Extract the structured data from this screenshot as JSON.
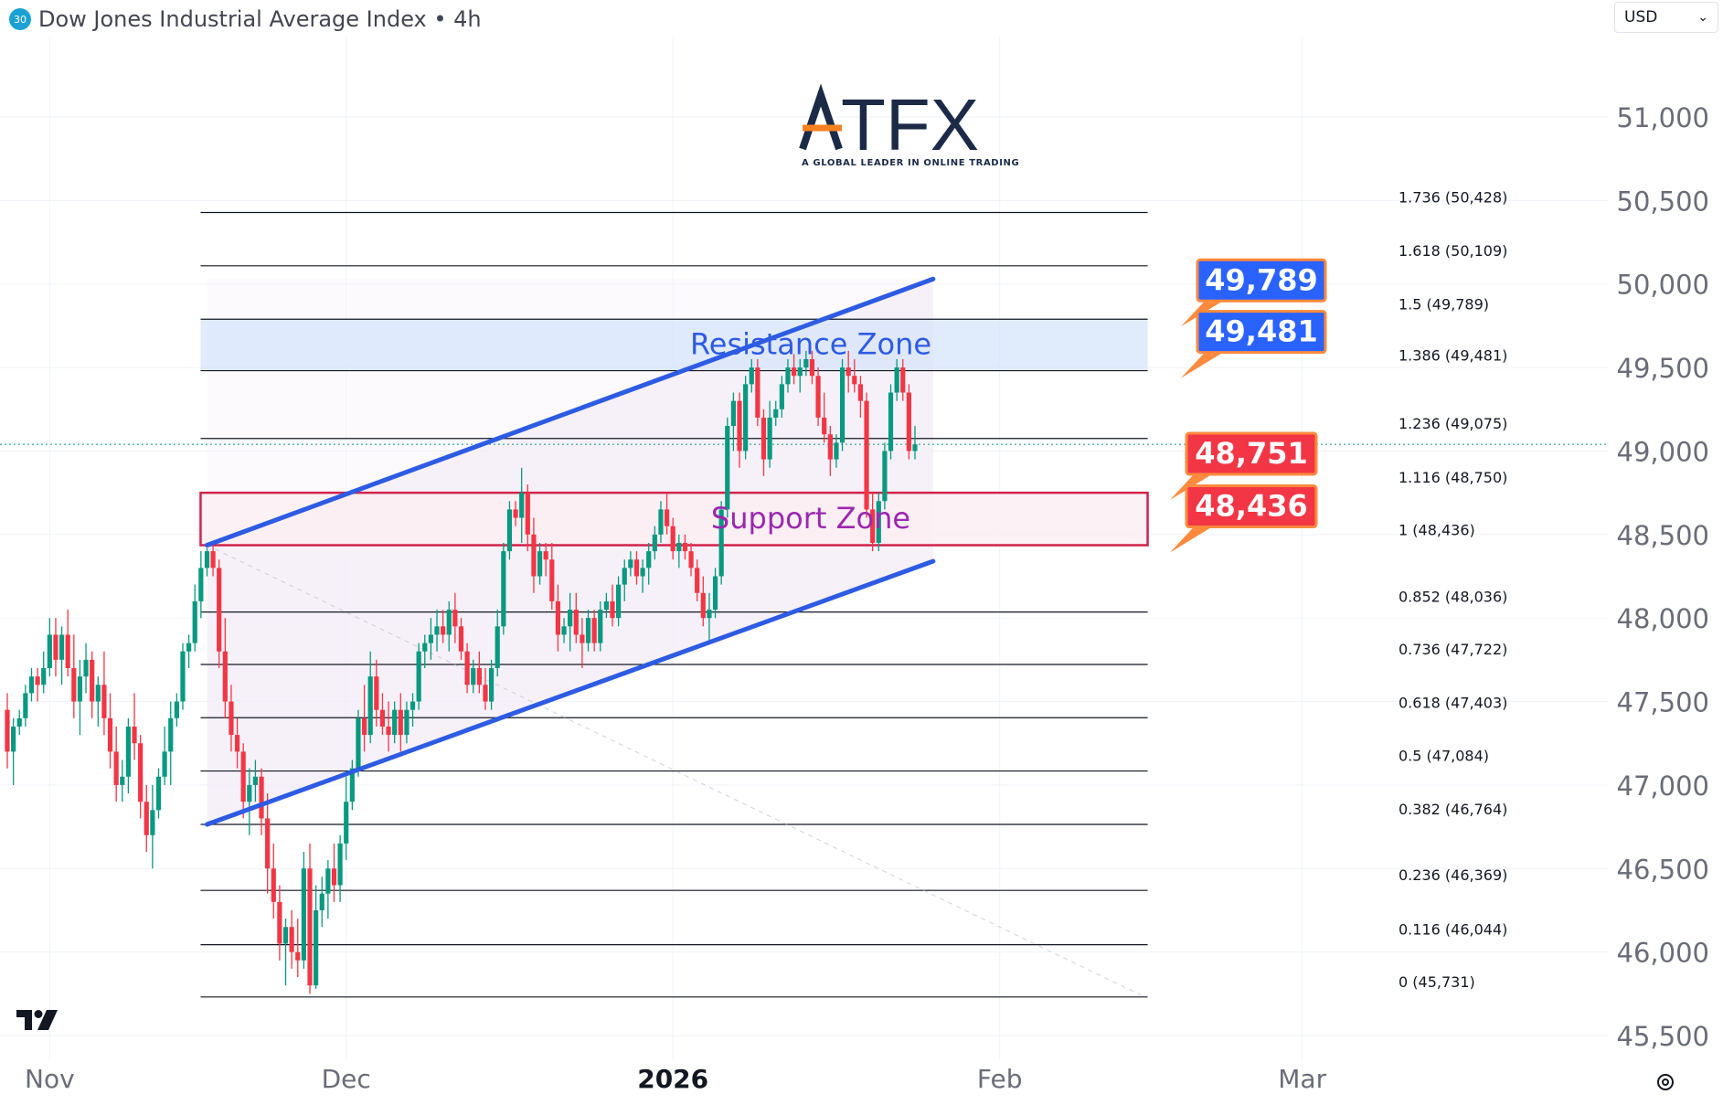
{
  "header": {
    "symbol_badge": "30",
    "title": "Dow Jones Industrial Average Index • 4h",
    "currency": "USD"
  },
  "brand": {
    "logo_text": "ATFX",
    "tagline": "A GLOBAL LEADER IN ONLINE TRADING",
    "accent_color": "#f58220",
    "text_color": "#1b2a47"
  },
  "colors": {
    "up": "#089981",
    "down": "#f23645",
    "channel": "#2d5be3",
    "resistance_fill": "#d6e4fb",
    "support_fill": "#fbeef3",
    "support_border": "#d1234b",
    "fib_line": "#131722"
  },
  "chart_data": {
    "type": "candlestick",
    "title": "Dow Jones Industrial Average Index • 4h",
    "ylim": [
      45380,
      51500
    ],
    "y_ticks": [
      45500,
      46000,
      46500,
      47000,
      47500,
      48000,
      48500,
      49000,
      49500,
      50000,
      50500,
      51000
    ],
    "y_tick_labels": [
      "45,500",
      "46,000",
      "46,500",
      "47,000",
      "47,500",
      "48,000",
      "48,500",
      "49,000",
      "49,500",
      "50,000",
      "50,500",
      "51,000"
    ],
    "x_ticks": [
      {
        "label": "Nov",
        "bar": 7,
        "bold": false
      },
      {
        "label": "Dec",
        "bar": 56,
        "bold": false
      },
      {
        "label": "2026",
        "bar": 110,
        "bold": true
      },
      {
        "label": "Feb",
        "bar": 164,
        "bold": false
      },
      {
        "label": "Mar",
        "bar": 214,
        "bold": false
      }
    ],
    "last_price": 49040,
    "fib_levels": [
      {
        "ratio": "0",
        "price": 45731,
        "label": "0 (45,731)"
      },
      {
        "ratio": "0.116",
        "price": 46044,
        "label": "0.116 (46,044)"
      },
      {
        "ratio": "0.236",
        "price": 46369,
        "label": "0.236 (46,369)"
      },
      {
        "ratio": "0.382",
        "price": 46764,
        "label": "0.382 (46,764)"
      },
      {
        "ratio": "0.5",
        "price": 47084,
        "label": "0.5 (47,084)"
      },
      {
        "ratio": "0.618",
        "price": 47403,
        "label": "0.618 (47,403)"
      },
      {
        "ratio": "0.736",
        "price": 47722,
        "label": "0.736 (47,722)"
      },
      {
        "ratio": "0.852",
        "price": 48036,
        "label": "0.852 (48,036)"
      },
      {
        "ratio": "1",
        "price": 48436,
        "label": "1 (48,436)"
      },
      {
        "ratio": "1.116",
        "price": 48750,
        "label": "1.116 (48,750)"
      },
      {
        "ratio": "1.236",
        "price": 49075,
        "label": "1.236 (49,075)"
      },
      {
        "ratio": "1.386",
        "price": 49481,
        "label": "1.386 (49,481)"
      },
      {
        "ratio": "1.5",
        "price": 49789,
        "label": "1.5 (49,789)"
      },
      {
        "ratio": "1.618",
        "price": 50109,
        "label": "1.618 (50,109)"
      },
      {
        "ratio": "1.736",
        "price": 50428,
        "label": "1.736 (50,428)"
      }
    ],
    "zones": [
      {
        "name": "Resistance Zone",
        "from": 49481,
        "to": 49789,
        "bar_start": 33,
        "bar_end": 188
      },
      {
        "name": "Support Zone",
        "from": 48436,
        "to": 48750,
        "bar_start": 33,
        "bar_end": 188
      }
    ],
    "price_labels": [
      {
        "text": "49,789",
        "price": 49789,
        "kind": "blue"
      },
      {
        "text": "49,481",
        "price": 49481,
        "kind": "blue"
      },
      {
        "text": "48,751",
        "price": 48751,
        "kind": "red"
      },
      {
        "text": "48,436",
        "price": 48436,
        "kind": "red"
      }
    ],
    "channel": {
      "upper": [
        [
          33,
          48436
        ],
        [
          153,
          50030
        ]
      ],
      "lower": [
        [
          33,
          46764
        ],
        [
          153,
          48340
        ]
      ]
    },
    "fib_anchor": [
      [
        33,
        48436
      ],
      [
        188,
        45731
      ]
    ],
    "candles": [
      [
        47450,
        47550,
        47100,
        47200
      ],
      [
        47200,
        47400,
        47000,
        47350
      ],
      [
        47350,
        47450,
        47300,
        47400
      ],
      [
        47400,
        47600,
        47350,
        47550
      ],
      [
        47550,
        47700,
        47500,
        47650
      ],
      [
        47650,
        47700,
        47500,
        47600
      ],
      [
        47600,
        47800,
        47550,
        47700
      ],
      [
        47700,
        48000,
        47650,
        47900
      ],
      [
        47900,
        48000,
        47650,
        47750
      ],
      [
        47750,
        47950,
        47600,
        47900
      ],
      [
        47900,
        48050,
        47650,
        47700
      ],
      [
        47700,
        47900,
        47400,
        47500
      ],
      [
        47500,
        47750,
        47300,
        47650
      ],
      [
        47650,
        47850,
        47550,
        47750
      ],
      [
        47750,
        47800,
        47400,
        47500
      ],
      [
        47500,
        47650,
        47350,
        47600
      ],
      [
        47600,
        47800,
        47300,
        47400
      ],
      [
        47400,
        47550,
        47100,
        47200
      ],
      [
        47200,
        47350,
        46900,
        47000
      ],
      [
        47000,
        47150,
        46900,
        47050
      ],
      [
        47050,
        47400,
        46950,
        47350
      ],
      [
        47350,
        47550,
        47150,
        47250
      ],
      [
        47250,
        47300,
        46800,
        46900
      ],
      [
        46900,
        47000,
        46600,
        46700
      ],
      [
        46700,
        47000,
        46500,
        46850
      ],
      [
        46850,
        47100,
        46800,
        47050
      ],
      [
        47050,
        47350,
        47000,
        47200
      ],
      [
        47200,
        47500,
        47000,
        47400
      ],
      [
        47400,
        47550,
        47350,
        47500
      ],
      [
        47500,
        47850,
        47450,
        47800
      ],
      [
        47800,
        47900,
        47700,
        47850
      ],
      [
        47850,
        48200,
        47800,
        48100
      ],
      [
        48100,
        48400,
        48000,
        48300
      ],
      [
        48300,
        48420,
        48250,
        48400
      ],
      [
        48400,
        48450,
        48250,
        48300
      ],
      [
        48300,
        48350,
        47700,
        47800
      ],
      [
        47800,
        48000,
        47400,
        47500
      ],
      [
        47500,
        47600,
        47200,
        47300
      ],
      [
        47300,
        47400,
        47100,
        47200
      ],
      [
        47200,
        47250,
        46800,
        46900
      ],
      [
        46900,
        47100,
        46700,
        47000
      ],
      [
        47000,
        47150,
        46900,
        47050
      ],
      [
        47050,
        47100,
        46700,
        46800
      ],
      [
        46800,
        46950,
        46350,
        46500
      ],
      [
        46500,
        46650,
        46200,
        46300
      ],
      [
        46300,
        46400,
        45950,
        46050
      ],
      [
        46050,
        46200,
        45800,
        46150
      ],
      [
        46150,
        46250,
        45900,
        46000
      ],
      [
        46000,
        46200,
        45850,
        45950
      ],
      [
        45950,
        46600,
        45900,
        46500
      ],
      [
        46500,
        46650,
        45750,
        45800
      ],
      [
        45800,
        46400,
        45780,
        46250
      ],
      [
        46250,
        46450,
        46150,
        46350
      ],
      [
        46350,
        46550,
        46200,
        46500
      ],
      [
        46500,
        46650,
        46300,
        46400
      ],
      [
        46400,
        46700,
        46300,
        46650
      ],
      [
        46650,
        47050,
        46550,
        46900
      ],
      [
        46900,
        47150,
        46850,
        47100
      ],
      [
        47100,
        47450,
        47050,
        47400
      ],
      [
        47400,
        47600,
        47200,
        47300
      ],
      [
        47300,
        47800,
        47250,
        47650
      ],
      [
        47650,
        47750,
        47350,
        47450
      ],
      [
        47450,
        47550,
        47300,
        47350
      ],
      [
        47350,
        47500,
        47200,
        47300
      ],
      [
        47300,
        47500,
        47250,
        47450
      ],
      [
        47450,
        47550,
        47200,
        47300
      ],
      [
        47300,
        47500,
        47250,
        47450
      ],
      [
        47450,
        47550,
        47350,
        47500
      ],
      [
        47500,
        47850,
        47450,
        47800
      ],
      [
        47800,
        47900,
        47700,
        47850
      ],
      [
        47850,
        48000,
        47750,
        47900
      ],
      [
        47900,
        48050,
        47800,
        47950
      ],
      [
        47950,
        48050,
        47850,
        47900
      ],
      [
        47900,
        48100,
        47800,
        48050
      ],
      [
        48050,
        48150,
        47850,
        47950
      ],
      [
        47950,
        48000,
        47750,
        47800
      ],
      [
        47800,
        47850,
        47550,
        47600
      ],
      [
        47600,
        47750,
        47550,
        47700
      ],
      [
        47700,
        47800,
        47550,
        47600
      ],
      [
        47600,
        47700,
        47450,
        47500
      ],
      [
        47500,
        47750,
        47450,
        47700
      ],
      [
        47700,
        48050,
        47650,
        47950
      ],
      [
        47950,
        48450,
        47900,
        48400
      ],
      [
        48400,
        48700,
        48350,
        48650
      ],
      [
        48650,
        48700,
        48550,
        48600
      ],
      [
        48600,
        48900,
        48450,
        48750
      ],
      [
        48750,
        48800,
        48400,
        48500
      ],
      [
        48500,
        48600,
        48150,
        48250
      ],
      [
        48250,
        48450,
        48200,
        48400
      ],
      [
        48400,
        48450,
        48250,
        48350
      ],
      [
        48350,
        48450,
        48050,
        48100
      ],
      [
        48100,
        48200,
        47800,
        47900
      ],
      [
        47900,
        48000,
        47850,
        47950
      ],
      [
        47950,
        48150,
        47800,
        48050
      ],
      [
        48050,
        48150,
        47850,
        47900
      ],
      [
        47900,
        48000,
        47700,
        47850
      ],
      [
        47850,
        48050,
        47800,
        48000
      ],
      [
        48000,
        48050,
        47800,
        47850
      ],
      [
        47850,
        48100,
        47800,
        48050
      ],
      [
        48050,
        48150,
        48000,
        48100
      ],
      [
        48100,
        48200,
        47950,
        48000
      ],
      [
        48000,
        48250,
        47950,
        48200
      ],
      [
        48200,
        48350,
        48100,
        48300
      ],
      [
        48300,
        48400,
        48250,
        48350
      ],
      [
        48350,
        48400,
        48200,
        48250
      ],
      [
        48250,
        48350,
        48150,
        48300
      ],
      [
        48300,
        48450,
        48200,
        48400
      ],
      [
        48400,
        48550,
        48350,
        48500
      ],
      [
        48500,
        48700,
        48450,
        48650
      ],
      [
        48650,
        48750,
        48500,
        48550
      ],
      [
        48550,
        48600,
        48350,
        48400
      ],
      [
        48400,
        48500,
        48300,
        48450
      ],
      [
        48450,
        48500,
        48350,
        48400
      ],
      [
        48400,
        48450,
        48250,
        48300
      ],
      [
        48300,
        48350,
        48100,
        48150
      ],
      [
        48150,
        48250,
        47950,
        48000
      ],
      [
        48000,
        48150,
        47850,
        48050
      ],
      [
        48050,
        48300,
        48000,
        48250
      ],
      [
        48250,
        48700,
        48200,
        48650
      ],
      [
        48650,
        49200,
        48600,
        49150
      ],
      [
        49150,
        49350,
        49000,
        49300
      ],
      [
        49300,
        49350,
        48900,
        49000
      ],
      [
        49000,
        49450,
        48950,
        49400
      ],
      [
        49400,
        49550,
        49350,
        49500
      ],
      [
        49500,
        49550,
        49150,
        49200
      ],
      [
        49200,
        49250,
        48850,
        48950
      ],
      [
        48950,
        49300,
        48900,
        49200
      ],
      [
        49200,
        49300,
        49150,
        49250
      ],
      [
        49250,
        49450,
        49200,
        49400
      ],
      [
        49400,
        49550,
        49350,
        49500
      ],
      [
        49500,
        49580,
        49400,
        49450
      ],
      [
        49450,
        49550,
        49350,
        49500
      ],
      [
        49500,
        49600,
        49450,
        49550
      ],
      [
        49550,
        49600,
        49400,
        49450
      ],
      [
        49450,
        49500,
        49150,
        49200
      ],
      [
        49200,
        49350,
        49050,
        49100
      ],
      [
        49100,
        49150,
        48850,
        48950
      ],
      [
        48950,
        49100,
        48900,
        49050
      ],
      [
        49050,
        49550,
        49000,
        49500
      ],
      [
        49500,
        49600,
        49350,
        49450
      ],
      [
        49450,
        49550,
        49350,
        49400
      ],
      [
        49400,
        49450,
        49200,
        49300
      ],
      [
        49300,
        49350,
        48600,
        48650
      ],
      [
        48650,
        48750,
        48400,
        48450
      ],
      [
        48450,
        48750,
        48400,
        48700
      ],
      [
        48700,
        49050,
        48650,
        49000
      ],
      [
        49000,
        49400,
        48950,
        49350
      ],
      [
        49350,
        49550,
        49300,
        49500
      ],
      [
        49500,
        49550,
        49300,
        49350
      ],
      [
        49350,
        49400,
        48950,
        49000
      ],
      [
        49000,
        49150,
        48950,
        49040
      ]
    ]
  }
}
